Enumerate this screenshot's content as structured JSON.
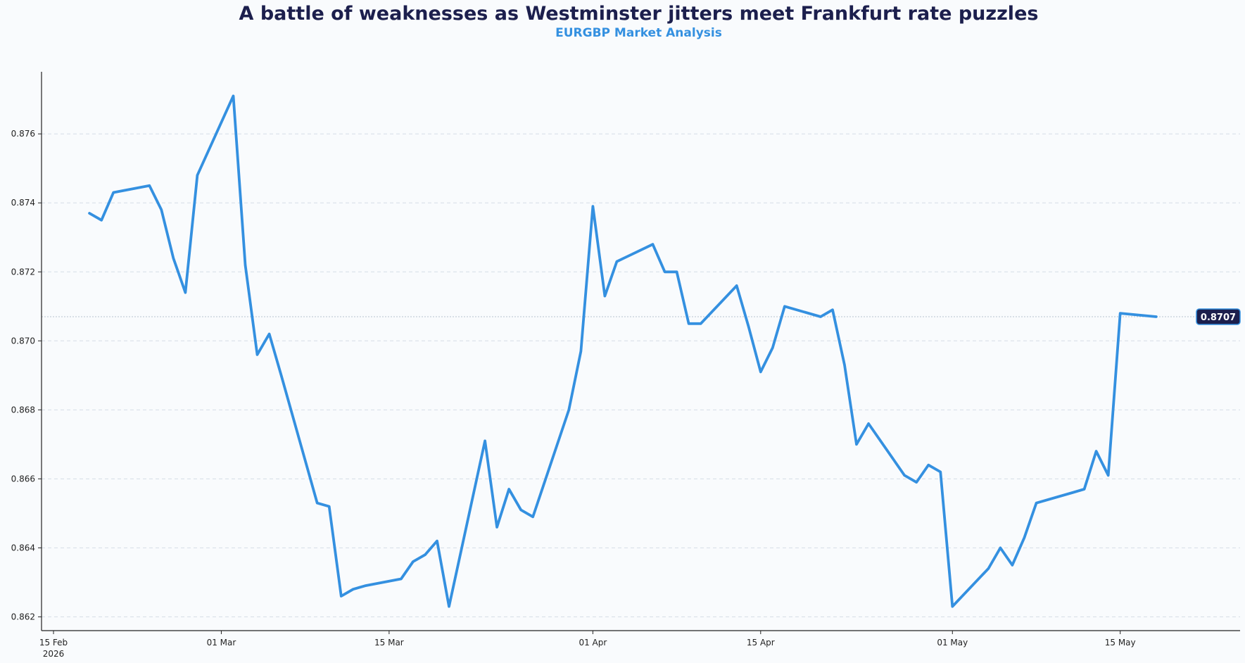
{
  "chart_data": {
    "type": "line",
    "title": "A battle of weaknesses as Westminster jitters meet Frankfurt rate puzzles",
    "subtitle": "EURGBP Market Analysis",
    "xlabel": "",
    "ylabel": "",
    "ylim": [
      0.8616,
      0.8778
    ],
    "xlim": [
      "2026-02-14",
      "2026-05-25"
    ],
    "grid": "horizontal-dashed",
    "colors": {
      "line": "#3490e0",
      "title": "#1c1f4d",
      "subtitle": "#3490e0",
      "last_value_badge": "#1c1f4d",
      "grid": "#d6dde6",
      "axis": "#222222"
    },
    "last_value_label": "0.8707",
    "y_ticks": [
      {
        "value": 0.862,
        "label": "0.862"
      },
      {
        "value": 0.864,
        "label": "0.864"
      },
      {
        "value": 0.866,
        "label": "0.866"
      },
      {
        "value": 0.868,
        "label": "0.868"
      },
      {
        "value": 0.87,
        "label": "0.870"
      },
      {
        "value": 0.872,
        "label": "0.872"
      },
      {
        "value": 0.874,
        "label": "0.874"
      },
      {
        "value": 0.876,
        "label": "0.876"
      }
    ],
    "x_ticks": [
      {
        "date": "2026-02-15",
        "label": "15 Feb",
        "label2": "2026"
      },
      {
        "date": "2026-03-01",
        "label": "01 Mar"
      },
      {
        "date": "2026-03-15",
        "label": "15 Mar"
      },
      {
        "date": "2026-04-01",
        "label": "01 Apr"
      },
      {
        "date": "2026-04-15",
        "label": "15 Apr"
      },
      {
        "date": "2026-05-01",
        "label": "01 May"
      },
      {
        "date": "2026-05-15",
        "label": "15 May"
      }
    ],
    "series": [
      {
        "x": [
          "2026-02-18",
          "2026-02-19",
          "2026-02-20",
          "2026-02-23",
          "2026-02-24",
          "2026-02-25",
          "2026-02-26",
          "2026-02-27",
          "2026-03-02",
          "2026-03-03",
          "2026-03-04",
          "2026-03-05",
          "2026-03-06",
          "2026-03-09",
          "2026-03-10",
          "2026-03-11",
          "2026-03-12",
          "2026-03-13",
          "2026-03-16",
          "2026-03-17",
          "2026-03-18",
          "2026-03-19",
          "2026-03-20",
          "2026-03-23",
          "2026-03-24",
          "2026-03-25",
          "2026-03-26",
          "2026-03-27",
          "2026-03-30",
          "2026-03-31",
          "2026-04-01",
          "2026-04-02",
          "2026-04-03",
          "2026-04-06",
          "2026-04-07",
          "2026-04-08",
          "2026-04-09",
          "2026-04-10",
          "2026-04-13",
          "2026-04-14",
          "2026-04-15",
          "2026-04-16",
          "2026-04-17",
          "2026-04-20",
          "2026-04-21",
          "2026-04-22",
          "2026-04-23",
          "2026-04-24",
          "2026-04-27",
          "2026-04-28",
          "2026-04-29",
          "2026-04-30",
          "2026-05-01",
          "2026-05-04",
          "2026-05-05",
          "2026-05-06",
          "2026-05-07",
          "2026-05-08",
          "2026-05-11",
          "2026-05-12",
          "2026-05-13",
          "2026-05-14",
          "2026-05-15",
          "2026-05-18"
        ],
        "y": [
          0.8737,
          0.8735,
          0.8743,
          0.8745,
          0.8738,
          0.8724,
          0.8714,
          0.8748,
          0.8771,
          0.8722,
          0.8696,
          0.8702,
          0.869,
          0.8653,
          0.8652,
          0.8626,
          0.8628,
          0.8629,
          0.8631,
          0.8636,
          0.8638,
          0.8642,
          0.8623,
          0.8671,
          0.8646,
          0.8657,
          0.8651,
          0.8649,
          0.868,
          0.8697,
          0.8739,
          0.8713,
          0.8723,
          0.8728,
          0.872,
          0.872,
          0.8705,
          0.8705,
          0.8716,
          0.8704,
          0.8691,
          0.8698,
          0.871,
          0.8707,
          0.8709,
          0.8693,
          0.867,
          0.8676,
          0.8661,
          0.8659,
          0.8664,
          0.8662,
          0.8623,
          0.8634,
          0.864,
          0.8635,
          0.8643,
          0.8653,
          0.8656,
          0.8657,
          0.8668,
          0.8661,
          0.8708,
          0.8707
        ]
      }
    ]
  }
}
